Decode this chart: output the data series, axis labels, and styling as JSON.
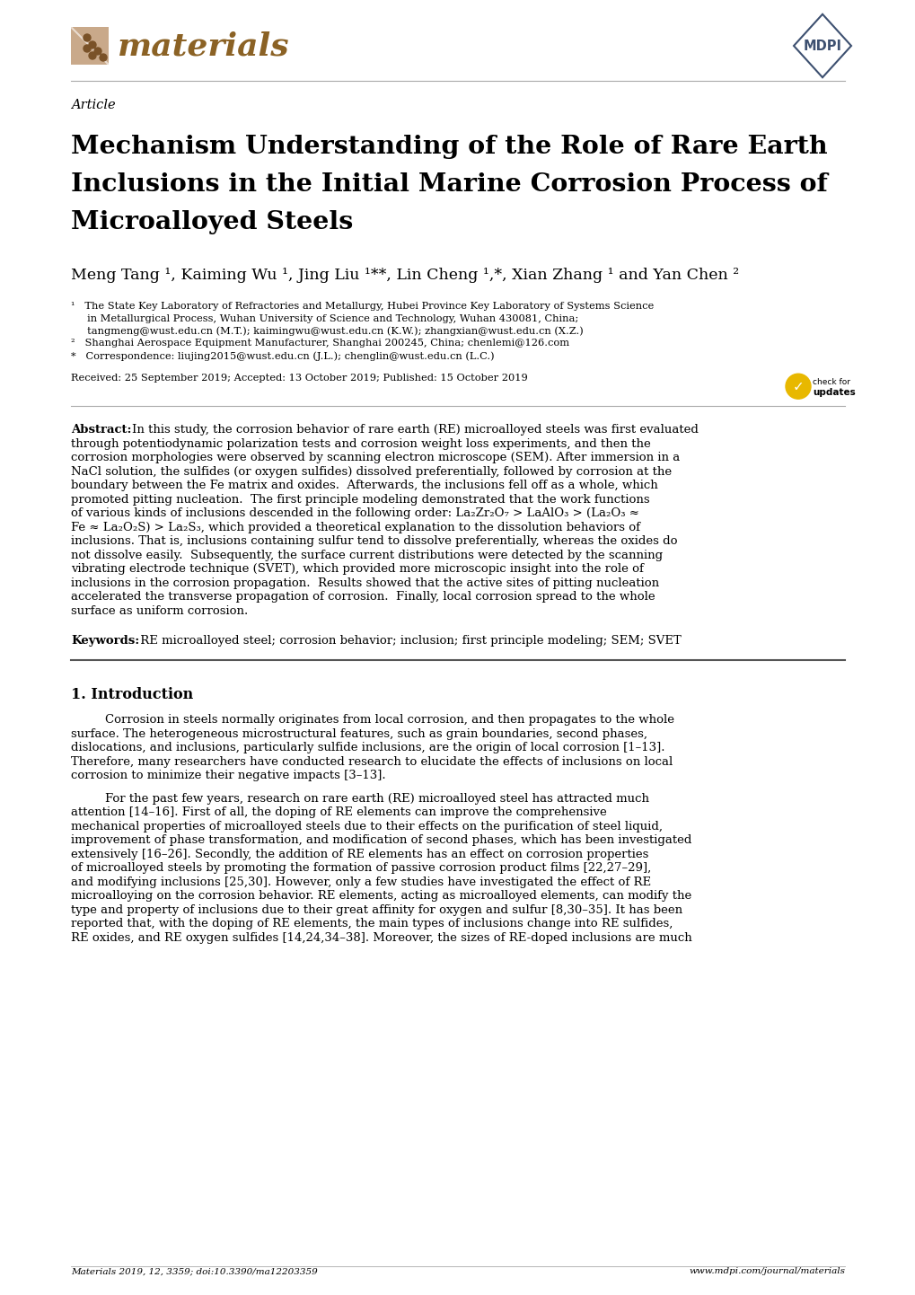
{
  "page_width": 10.2,
  "page_height": 14.42,
  "dpi": 100,
  "background_color": "#ffffff",
  "text_color": "#000000",
  "journal_name": "materials",
  "journal_color": "#8B6225",
  "logo_bg_color": "#c9a98a",
  "logo_dark_color": "#7a5228",
  "mdpi_color": "#3d5070",
  "article_label": "Article",
  "title_line1": "Mechanism Understanding of the Role of Rare Earth",
  "title_line2": "Inclusions in the Initial Marine Corrosion Process of",
  "title_line3": "Microalloyed Steels",
  "authors": "Meng Tang ¹, Kaiming Wu ¹, Jing Liu ¹**, Lin Cheng ¹,*, Xian Zhang ¹ and Yan Chen ²",
  "affil1a": "¹   The State Key Laboratory of Refractories and Metallurgy, Hubei Province Key Laboratory of Systems Science",
  "affil1b": "     in Metallurgical Process, Wuhan University of Science and Technology, Wuhan 430081, China;",
  "affil1c": "     tangmeng@wust.edu.cn (M.T.); kaimingwu@wust.edu.cn (K.W.); zhangxian@wust.edu.cn (X.Z.)",
  "affil2": "²   Shanghai Aerospace Equipment Manufacturer, Shanghai 200245, China; chenlemi@126.com",
  "affil3": "*   Correspondence: liujing2015@wust.edu.cn (J.L.); chenglin@wust.edu.cn (L.C.)",
  "received": "Received: 25 September 2019; Accepted: 13 October 2019; Published: 15 October 2019",
  "abstract_bold": "Abstract:",
  "abstract_body": " In this study, the corrosion behavior of rare earth (RE) microalloyed steels was first evaluated through potentiodynamic polarization tests and corrosion weight loss experiments, and then the corrosion morphologies were observed by scanning electron microscope (SEM). After immersion in a NaCl solution, the sulfides (or oxygen sulfides) dissolved preferentially, followed by corrosion at the boundary between the Fe matrix and oxides. Afterwards, the inclusions fell off as a whole, which promoted pitting nucleation.  The first principle modeling demonstrated that the work functions of various kinds of inclusions descended in the following order: La₂Zr₂O₇ > LaAlO₃ > (La₂O₃ ≈ Fe ≈ La₂O₂S) > La₂S₃, which provided a theoretical explanation to the dissolution behaviors of inclusions. That is, inclusions containing sulfur tend to dissolve preferentially, whereas the oxides do not dissolve easily. Subsequently, the surface current distributions were detected by the scanning vibrating electrode technique (SVET), which provided more microscopic insight into the role of inclusions in the corrosion propagation. Results showed that the active sites of pitting nucleation accelerated the transverse propagation of corrosion.  Finally, local corrosion spread to the whole surface as uniform corrosion.",
  "keywords_bold": "Keywords:",
  "keywords_body": " RE microalloyed steel; corrosion behavior; inclusion; first principle modeling; SEM; SVET",
  "section1_title": "1. Introduction",
  "intro_para1": "Corrosion in steels normally originates from local corrosion, and then propagates to the whole surface. The heterogeneous microstructural features, such as grain boundaries, second phases, dislocations, and inclusions, particularly sulfide inclusions, are the origin of local corrosion [1–13]. Therefore, many researchers have conducted research to elucidate the effects of inclusions on local corrosion to minimize their negative impacts [3–13].",
  "intro_para2": "For the past few years, research on rare earth (RE) microalloyed steel has attracted much attention [14–16]. First of all, the doping of RE elements can improve the comprehensive mechanical properties of microalloyed steels due to their effects on the purification of steel liquid, improvement of phase transformation, and modification of second phases, which has been investigated extensively [16–26]. Secondly, the addition of RE elements has an effect on corrosion properties of microalloyed steels by promoting the formation of passive corrosion product films [22,27–29], and modifying inclusions [25,30]. However, only a few studies have investigated the effect of RE microalloying on the corrosion behavior. RE elements, acting as microalloyed elements, can modify the type and property of inclusions due to their great affinity for oxygen and sulfur [8,30–35]. It has been reported that, with the doping of RE elements, the main types of inclusions change into RE sulfides, RE oxides, and RE oxygen sulfides [14,24,34–38]. Moreover, the sizes of RE-doped inclusions are much",
  "footer_left": "Materials 2019, 12, 3359; doi:10.3390/ma12203359",
  "footer_right": "www.mdpi.com/journal/materials"
}
